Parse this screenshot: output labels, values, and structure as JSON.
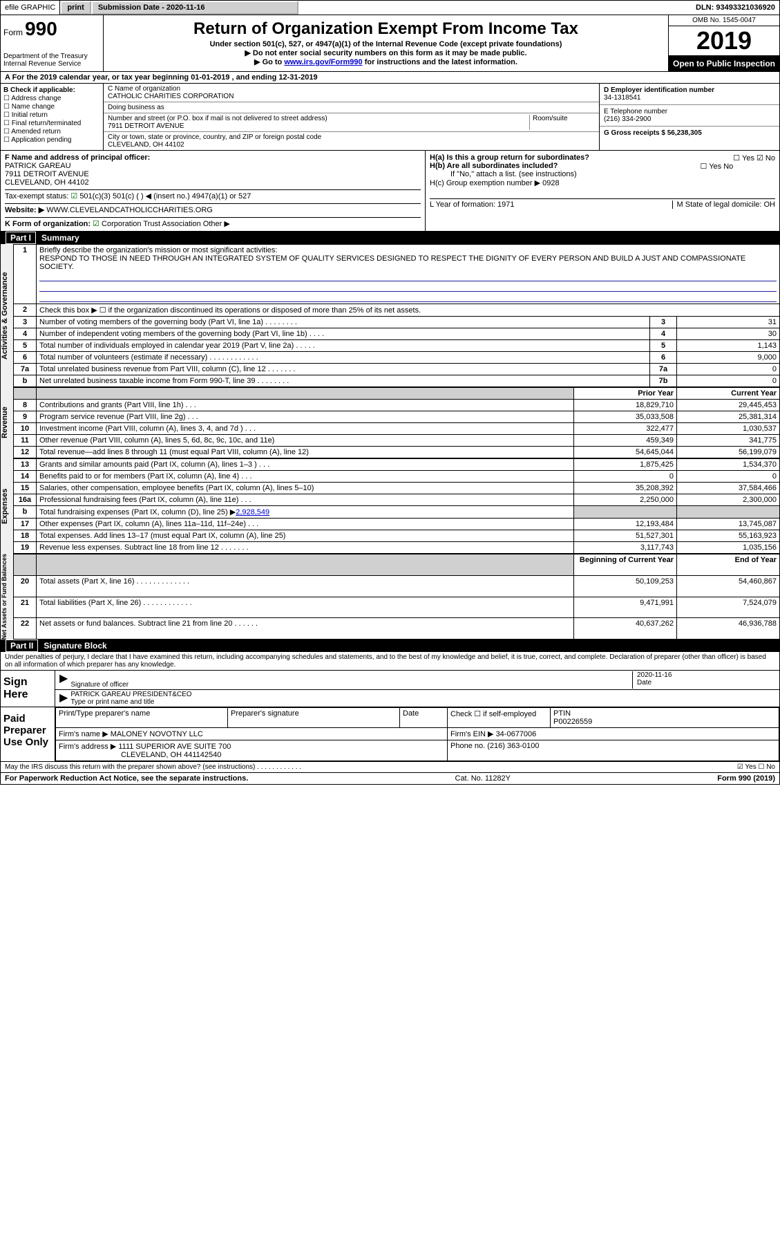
{
  "topbar": {
    "efile": "efile GRAPHIC",
    "print": "print",
    "subdate_lbl": "Submission Date - 2020-11-16",
    "dln": "DLN: 93493321036920"
  },
  "header": {
    "form_word": "Form",
    "form_num": "990",
    "dept": "Department of the Treasury",
    "irs": "Internal Revenue Service",
    "title": "Return of Organization Exempt From Income Tax",
    "sub1": "Under section 501(c), 527, or 4947(a)(1) of the Internal Revenue Code (except private foundations)",
    "sub2": "Do not enter social security numbers on this form as it may be made public.",
    "sub3_pre": "Go to ",
    "sub3_link": "www.irs.gov/Form990",
    "sub3_post": " for instructions and the latest information.",
    "omb": "OMB No. 1545-0047",
    "year": "2019",
    "open": "Open to Public Inspection"
  },
  "rowA": "A For the 2019 calendar year, or tax year beginning 01-01-2019    , and ending 12-31-2019",
  "colB": {
    "hdr": "B Check if applicable:",
    "items": [
      "Address change",
      "Name change",
      "Initial return",
      "Final return/terminated",
      "Amended return",
      "Application pending"
    ]
  },
  "colC": {
    "name_lbl": "C Name of organization",
    "name": "CATHOLIC CHARITIES CORPORATION",
    "dba_lbl": "Doing business as",
    "dba": "",
    "street_lbl": "Number and street (or P.O. box if mail is not delivered to street address)",
    "room_lbl": "Room/suite",
    "street": "7911 DETROIT AVENUE",
    "city_lbl": "City or town, state or province, country, and ZIP or foreign postal code",
    "city": "CLEVELAND, OH  44102"
  },
  "colDE": {
    "d_lbl": "D Employer identification number",
    "d": "34-1318541",
    "e_lbl": "E Telephone number",
    "e": "(216) 334-2900",
    "g_lbl": "G Gross receipts $ 56,238,305"
  },
  "lowerLeft": {
    "f_lbl": "F  Name and address of principal officer:",
    "f1": "PATRICK GAREAU",
    "f2": "7911 DETROIT AVENUE",
    "f3": "CLEVELAND, OH  44102",
    "tax_lbl": "Tax-exempt status:",
    "tax_opts": "501(c)(3)     501(c) (  ) ◀ (insert no.)     4947(a)(1) or     527",
    "web_lbl": "Website: ▶",
    "web": "WWW.CLEVELANDCATHOLICCHARITIES.ORG",
    "k_lbl": "K Form of organization:",
    "k_opts": "Corporation    Trust    Association    Other ▶"
  },
  "lowerRight": {
    "ha": "H(a)  Is this a group return for subordinates?",
    "ha_ans": "Yes  ☑ No",
    "hb": "H(b)  Are all subordinates included?",
    "hb_ans": "Yes   No",
    "hb_note": "If \"No,\" attach a list. (see instructions)",
    "hc": "H(c)  Group exemption number ▶   0928",
    "l_lbl": "L Year of formation: 1971",
    "m_lbl": "M State of legal domicile: OH"
  },
  "part1": {
    "hdr": "Summary",
    "q1_lbl": "Briefly describe the organization's mission or most significant activities:",
    "q1": "RESPOND TO THOSE IN NEED THROUGH AN INTEGRATED SYSTEM OF QUALITY SERVICES DESIGNED TO RESPECT THE DIGNITY OF EVERY PERSON AND BUILD A JUST AND COMPASSIONATE SOCIETY.",
    "q2": "Check this box ▶ ☐ if the organization discontinued its operations or disposed of more than 25% of its net assets.",
    "rows_ag": [
      {
        "n": "3",
        "t": "Number of voting members of the governing body (Part VI, line 1a)   .    .    .    .    .    .    .    .",
        "b": "3",
        "v": "31"
      },
      {
        "n": "4",
        "t": "Number of independent voting members of the governing body (Part VI, line 1b)    .    .    .    .",
        "b": "4",
        "v": "30"
      },
      {
        "n": "5",
        "t": "Total number of individuals employed in calendar year 2019 (Part V, line 2a)   .    .    .    .    .",
        "b": "5",
        "v": "1,143"
      },
      {
        "n": "6",
        "t": "Total number of volunteers (estimate if necessary)    .    .    .    .    .    .    .    .    .    .    .    .",
        "b": "6",
        "v": "9,000"
      },
      {
        "n": "7a",
        "t": "Total unrelated business revenue from Part VIII, column (C), line 12   .    .    .    .    .    .    .",
        "b": "7a",
        "v": "0"
      },
      {
        "n": "b",
        "t": "Net unrelated business taxable income from Form 990-T, line 39    .    .    .    .    .    .    .    .",
        "b": "7b",
        "v": "0"
      }
    ],
    "col_hdr_prior": "Prior Year",
    "col_hdr_curr": "Current Year",
    "rows_rev": [
      {
        "n": "8",
        "t": "Contributions and grants (Part VIII, line 1h)   .    .    .",
        "p": "18,829,710",
        "c": "29,445,453"
      },
      {
        "n": "9",
        "t": "Program service revenue (Part VIII, line 2g)   .    .    .",
        "p": "35,033,508",
        "c": "25,381,314"
      },
      {
        "n": "10",
        "t": "Investment income (Part VIII, column (A), lines 3, 4, and 7d )    .    .    .",
        "p": "322,477",
        "c": "1,030,537"
      },
      {
        "n": "11",
        "t": "Other revenue (Part VIII, column (A), lines 5, 6d, 8c, 9c, 10c, and 11e)",
        "p": "459,349",
        "c": "341,775"
      },
      {
        "n": "12",
        "t": "Total revenue—add lines 8 through 11 (must equal Part VIII, column (A), line 12)",
        "p": "54,645,044",
        "c": "56,199,079"
      }
    ],
    "rows_exp": [
      {
        "n": "13",
        "t": "Grants and similar amounts paid (Part IX, column (A), lines 1–3 )   .    .    .",
        "p": "1,875,425",
        "c": "1,534,370"
      },
      {
        "n": "14",
        "t": "Benefits paid to or for members (Part IX, column (A), line 4)   .    .    .",
        "p": "0",
        "c": "0"
      },
      {
        "n": "15",
        "t": "Salaries, other compensation, employee benefits (Part IX, column (A), lines 5–10)",
        "p": "35,208,392",
        "c": "37,584,466"
      },
      {
        "n": "16a",
        "t": "Professional fundraising fees (Part IX, column (A), line 11e)   .    .    .",
        "p": "2,250,000",
        "c": "2,300,000"
      },
      {
        "n": "b",
        "t": "Total fundraising expenses (Part IX, column (D), line 25) ▶2,928,549",
        "p": "_shade_",
        "c": "_shade_"
      },
      {
        "n": "17",
        "t": "Other expenses (Part IX, column (A), lines 11a–11d, 11f–24e)   .    .    .",
        "p": "12,193,484",
        "c": "13,745,087"
      },
      {
        "n": "18",
        "t": "Total expenses. Add lines 13–17 (must equal Part IX, column (A), line 25)",
        "p": "51,527,301",
        "c": "55,163,923"
      },
      {
        "n": "19",
        "t": "Revenue less expenses. Subtract line 18 from line 12   .    .    .    .    .    .    .",
        "p": "3,117,743",
        "c": "1,035,156"
      }
    ],
    "col_hdr_beg": "Beginning of Current Year",
    "col_hdr_end": "End of Year",
    "rows_na": [
      {
        "n": "20",
        "t": "Total assets (Part X, line 16)   .    .    .    .    .    .    .    .    .    .    .    .    .",
        "p": "50,109,253",
        "c": "54,460,867"
      },
      {
        "n": "21",
        "t": "Total liabilities (Part X, line 26)   .    .    .    .    .    .    .    .    .    .    .    .",
        "p": "9,471,991",
        "c": "7,524,079"
      },
      {
        "n": "22",
        "t": "Net assets or fund balances. Subtract line 21 from line 20   .    .    .    .    .    .",
        "p": "40,637,262",
        "c": "46,936,788"
      }
    ],
    "side_ag": "Activities & Governance",
    "side_rev": "Revenue",
    "side_exp": "Expenses",
    "side_na": "Net Assets or Fund Balances"
  },
  "part2": {
    "hdr": "Signature Block",
    "decl": "Under penalties of perjury, I declare that I have examined this return, including accompanying schedules and statements, and to the best of my knowledge and belief, it is true, correct, and complete. Declaration of preparer (other than officer) is based on all information of which preparer has any knowledge.",
    "sign_here": "Sign Here",
    "sig_officer_lbl": "Signature of officer",
    "date_lbl": "Date",
    "date_val": "2020-11-16",
    "name_title": "PATRICK GAREAU  PRESIDENT&CEO",
    "name_title_lbl": "Type or print name and title",
    "paid": "Paid Preparer Use Only",
    "prep_name_lbl": "Print/Type preparer's name",
    "prep_sig_lbl": "Preparer's signature",
    "prep_date_lbl": "Date",
    "check_self": "Check ☐ if self-employed",
    "ptin_lbl": "PTIN",
    "ptin": "P00226559",
    "firm_name_lbl": "Firm's name    ▶",
    "firm_name": "MALONEY NOVOTNY LLC",
    "firm_ein_lbl": "Firm's EIN ▶",
    "firm_ein": "34-0677006",
    "firm_addr_lbl": "Firm's address ▶",
    "firm_addr1": "1111 SUPERIOR AVE SUITE 700",
    "firm_addr2": "CLEVELAND, OH  441142540",
    "phone_lbl": "Phone no.",
    "phone": "(216) 363-0100",
    "discuss": "May the IRS discuss this return with the preparer shown above? (see instructions)    .    .    .    .    .    .    .    .    .    .    .    .",
    "discuss_ans": "☑ Yes  ☐ No"
  },
  "footer": {
    "left": "For Paperwork Reduction Act Notice, see the separate instructions.",
    "mid": "Cat. No. 11282Y",
    "right": "Form 990 (2019)"
  }
}
